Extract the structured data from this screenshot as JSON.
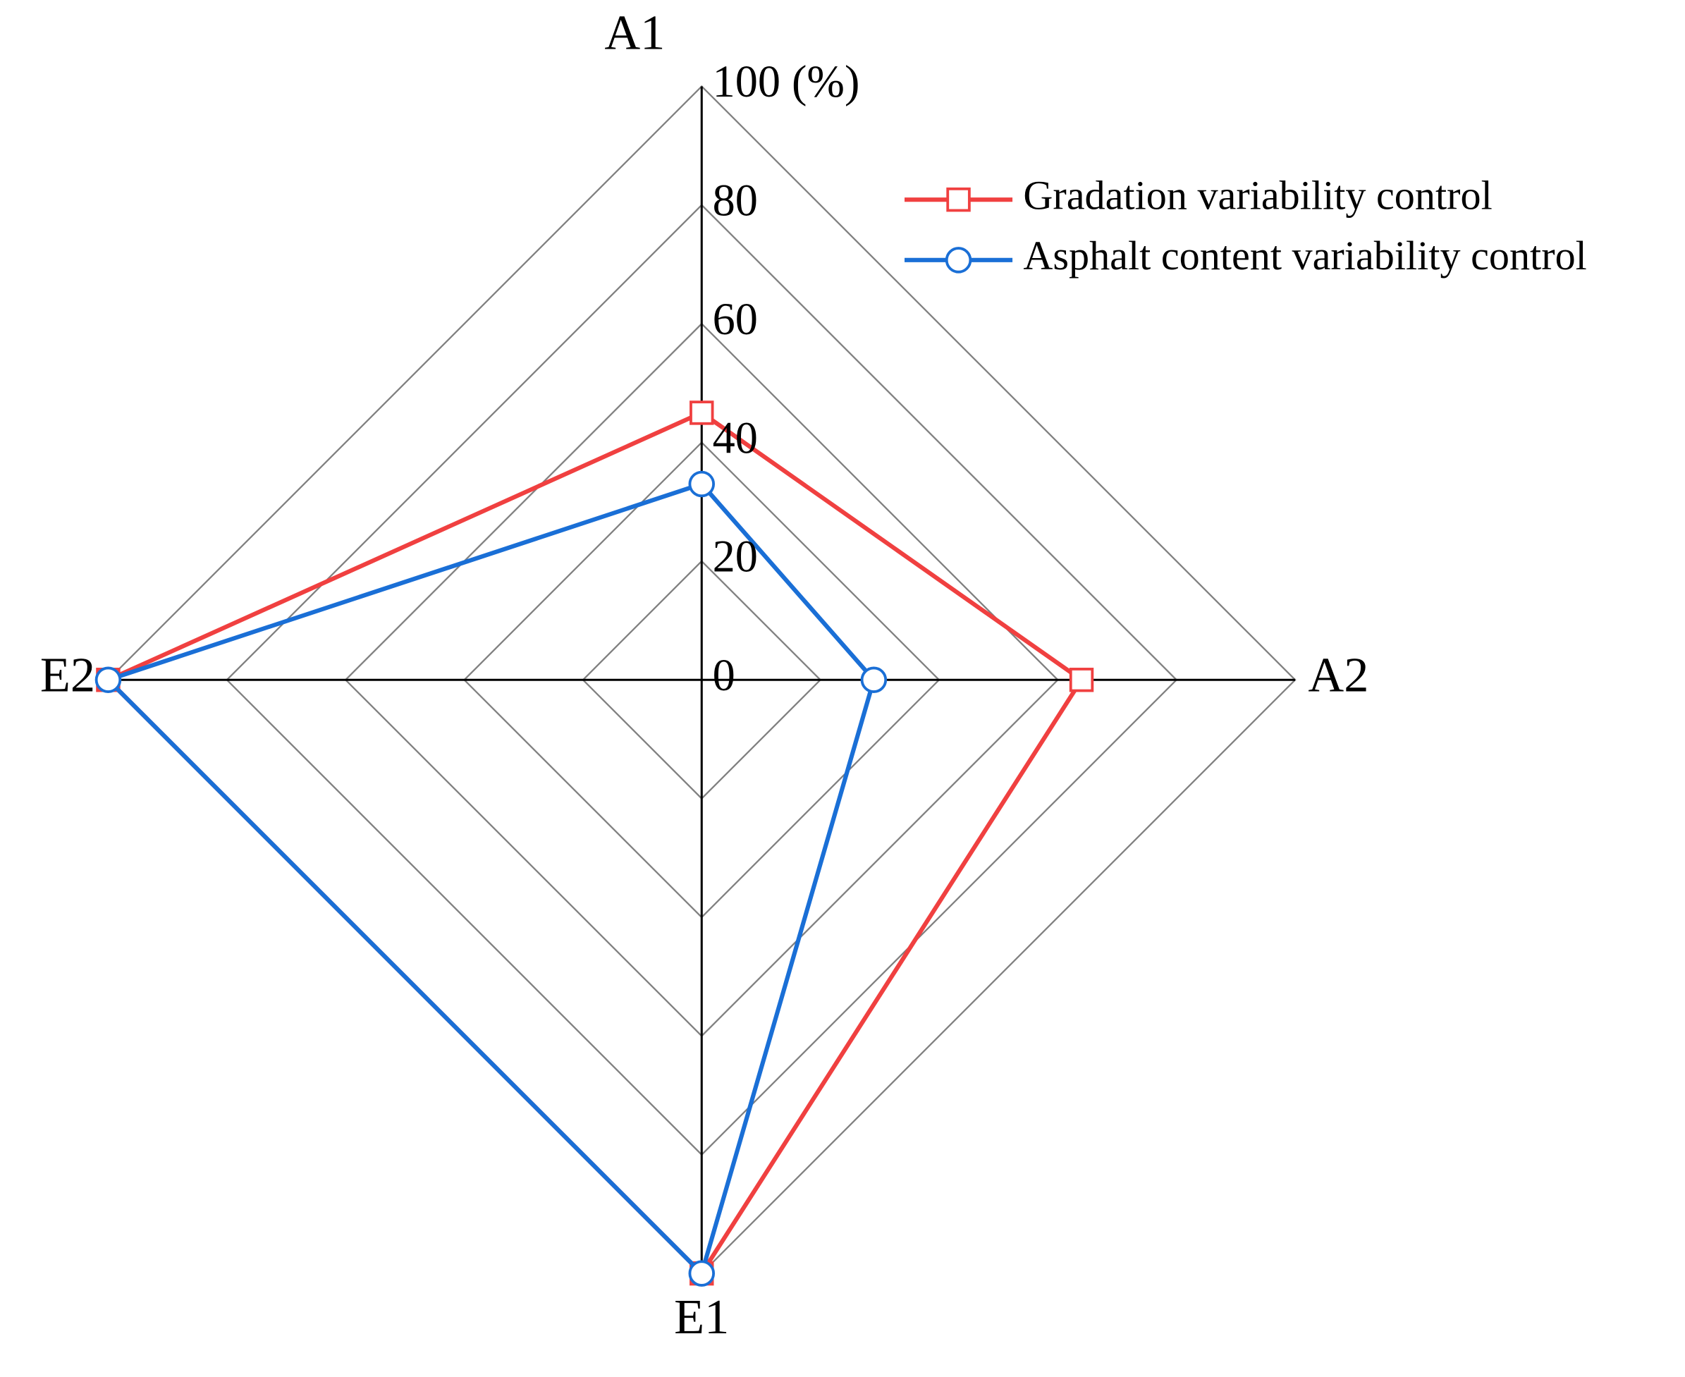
{
  "chart_data": {
    "type": "radar",
    "categories": [
      "A1",
      "A2",
      "E1",
      "E2"
    ],
    "series": [
      {
        "name": "Gradation variability control",
        "color": "#f04040",
        "marker": "square",
        "values": [
          45,
          64,
          100,
          100
        ]
      },
      {
        "name": "Asphalt content variability control",
        "color": "#1a6fd6",
        "marker": "circle",
        "values": [
          33,
          29,
          100,
          100
        ]
      }
    ],
    "ylim": [
      0,
      100
    ],
    "yticks": [
      0,
      20,
      40,
      60,
      80,
      {
        "value": 100,
        "label": "100 (%)"
      }
    ],
    "grid": true,
    "legend": "upper right"
  }
}
